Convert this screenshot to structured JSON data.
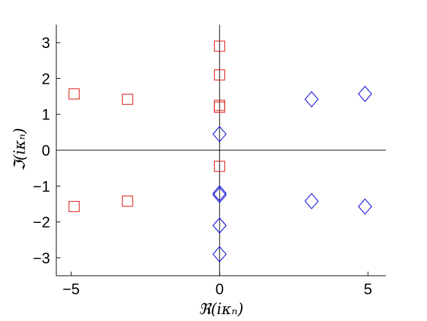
{
  "chart_data": {
    "type": "scatter",
    "title": "",
    "xlabel": "ℜ(iκₙ)",
    "ylabel": "ℑ(iκₙ)",
    "xlim": [
      -5.5,
      5.6
    ],
    "ylim": [
      -3.5,
      3.5
    ],
    "xticks": [
      -5,
      0,
      5
    ],
    "xtick_labels": [
      "−5",
      "0",
      "5"
    ],
    "yticks": [
      3,
      2,
      1,
      0,
      -1,
      -2,
      -3
    ],
    "ytick_labels": [
      "3",
      "2",
      "1",
      "0",
      "−1",
      "−2",
      "−3"
    ],
    "grid": false,
    "zero_lines": true,
    "series": [
      {
        "marker": "square",
        "color": "#e0302a",
        "points": [
          {
            "x": 0.0,
            "y": 2.9
          },
          {
            "x": 0.0,
            "y": 2.1
          },
          {
            "x": 0.0,
            "y": 1.25
          },
          {
            "x": 0.0,
            "y": 1.2
          },
          {
            "x": 0.0,
            "y": -0.45
          },
          {
            "x": -4.9,
            "y": 1.57
          },
          {
            "x": -3.1,
            "y": 1.42
          },
          {
            "x": -4.9,
            "y": -1.57
          },
          {
            "x": -3.1,
            "y": -1.42
          }
        ]
      },
      {
        "marker": "diamond",
        "color": "#1a1adf",
        "points": [
          {
            "x": 0.0,
            "y": 0.45
          },
          {
            "x": 0.0,
            "y": -1.2
          },
          {
            "x": 0.0,
            "y": -1.25
          },
          {
            "x": 0.0,
            "y": -2.1
          },
          {
            "x": 0.0,
            "y": -2.9
          },
          {
            "x": 3.1,
            "y": 1.42
          },
          {
            "x": 4.9,
            "y": 1.57
          },
          {
            "x": 3.1,
            "y": -1.42
          },
          {
            "x": 4.9,
            "y": -1.57
          }
        ]
      }
    ]
  }
}
